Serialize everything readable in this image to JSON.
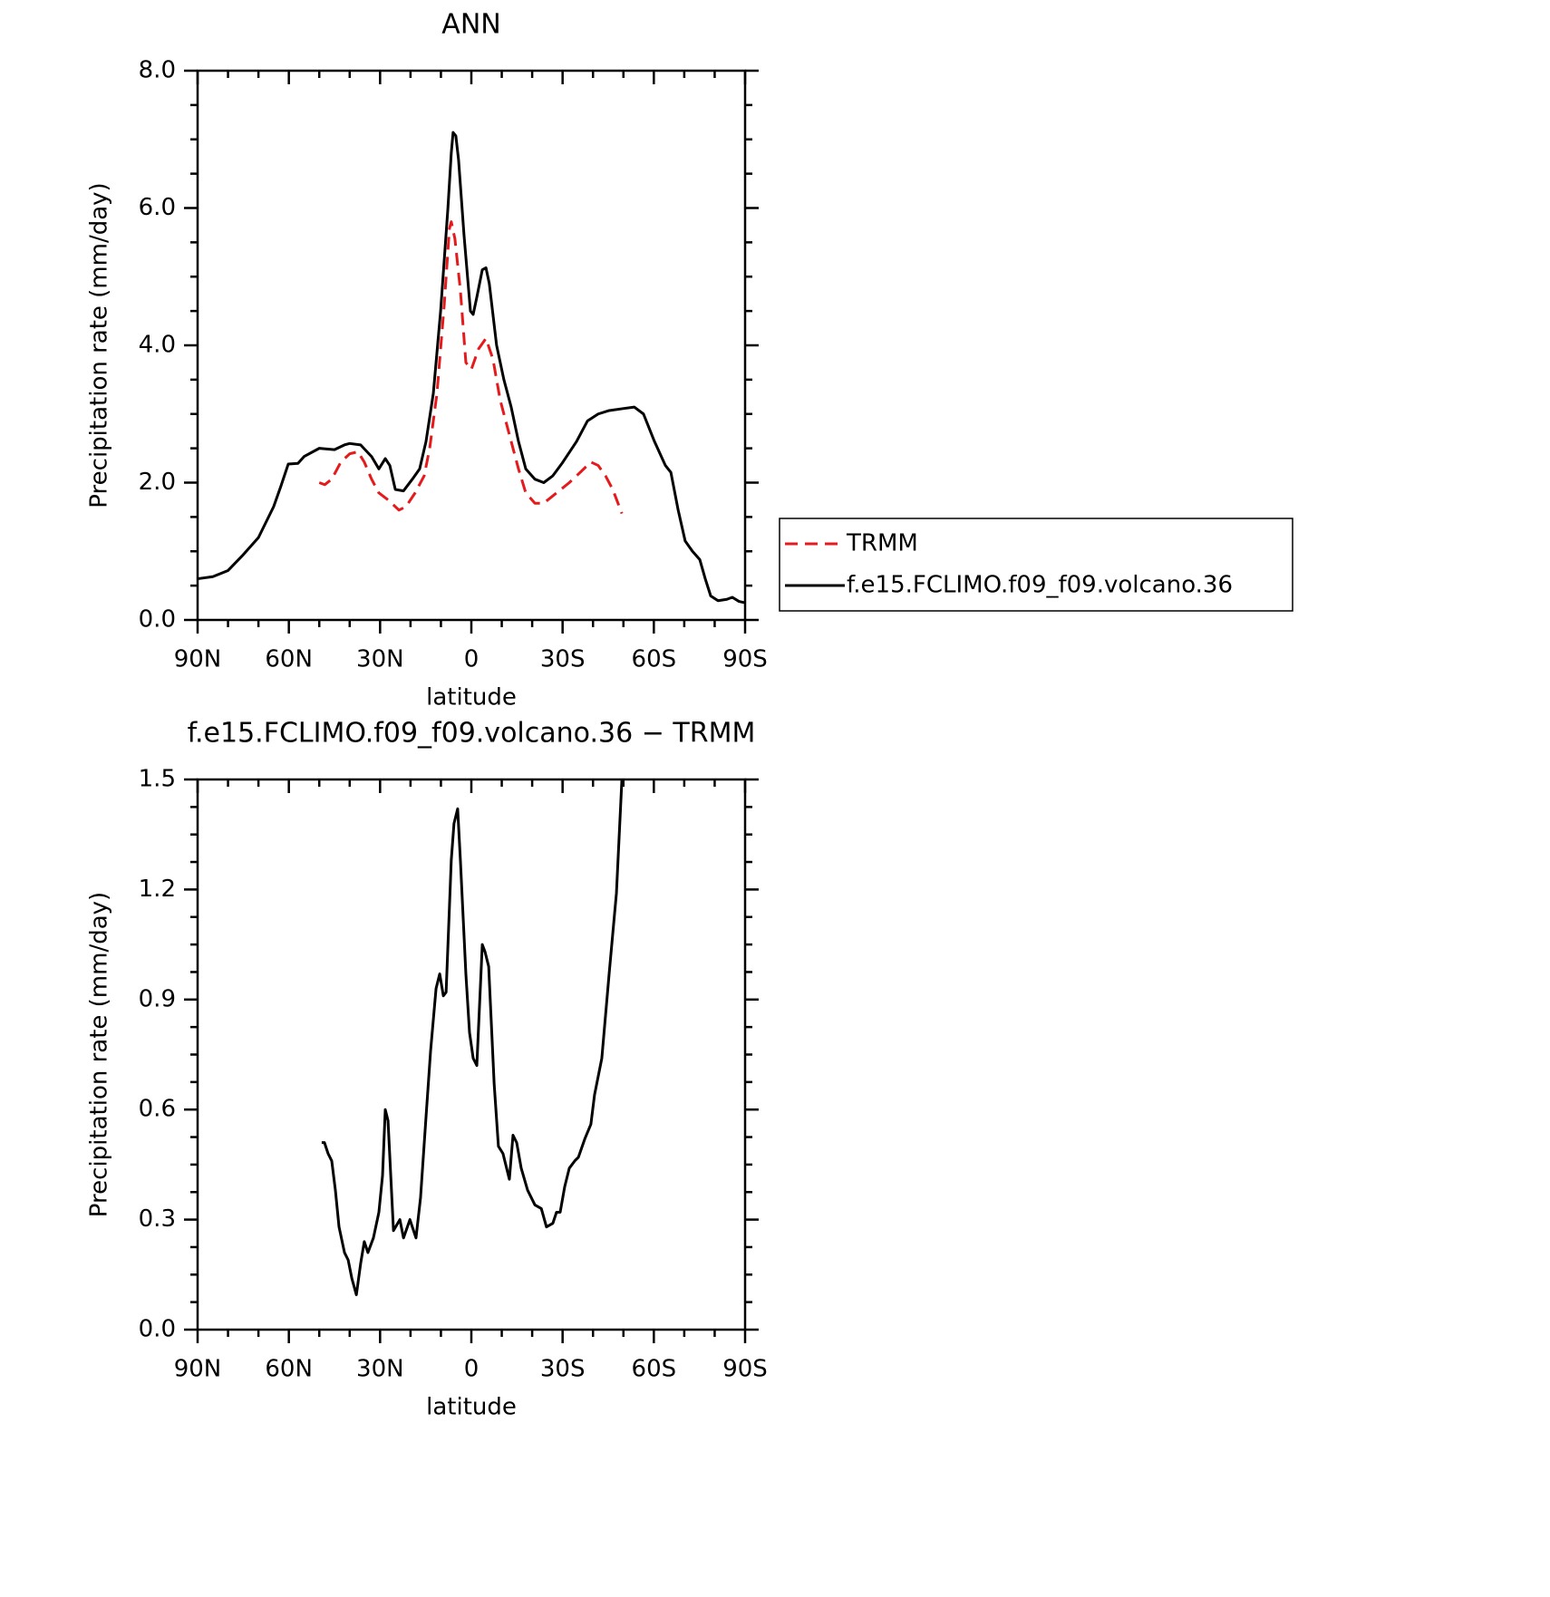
{
  "chart_data": [
    {
      "type": "line",
      "title": "ANN",
      "xlabel": "latitude",
      "ylabel": "Precipitation rate (mm/day)",
      "xlim": [
        90,
        -90
      ],
      "xticks": [
        {
          "value": 90,
          "label": "90N"
        },
        {
          "value": 60,
          "label": "60N"
        },
        {
          "value": 30,
          "label": "30N"
        },
        0,
        {
          "value": -30,
          "label": "30S"
        },
        {
          "value": -60,
          "label": "60S"
        },
        {
          "value": -90,
          "label": "90S"
        }
      ],
      "ylim": [
        0,
        8
      ],
      "yticks": [
        {
          "value": 0,
          "label": "0.0"
        },
        {
          "value": 2,
          "label": "2.0"
        },
        {
          "value": 4,
          "label": "4.0"
        },
        {
          "value": 6,
          "label": "6.0"
        },
        {
          "value": 8,
          "label": "8.0"
        }
      ],
      "series": [
        {
          "name": "TRMM",
          "color": "#e41a1c",
          "dashed": true,
          "x": [
            50,
            48.2,
            45.9,
            42.9,
            40,
            37.3,
            35.2,
            32.8,
            30.4,
            27.4,
            23.8,
            21.5,
            18.5,
            15.5,
            13.7,
            11.3,
            8.9,
            7.2,
            6.6,
            5.4,
            3.6,
            1.8,
            0,
            -2.4,
            -4.8,
            -7.1,
            -9.5,
            -12.5,
            -15.5,
            -17.9,
            -20.9,
            -23.8,
            -28,
            -32.2,
            -35.8,
            -39.3,
            -41.7,
            -44.1,
            -46.5,
            -49.5
          ],
          "values": [
            2.0,
            1.97,
            2.05,
            2.3,
            2.42,
            2.45,
            2.3,
            2.05,
            1.85,
            1.75,
            1.6,
            1.65,
            1.85,
            2.1,
            2.5,
            3.3,
            4.6,
            5.7,
            5.8,
            5.55,
            4.8,
            3.75,
            3.65,
            3.95,
            4.1,
            3.8,
            3.2,
            2.7,
            2.2,
            1.85,
            1.7,
            1.7,
            1.85,
            2.0,
            2.15,
            2.3,
            2.25,
            2.1,
            1.9,
            1.55
          ]
        },
        {
          "name": "f.e15.FCLIMO.f09_f09.volcano.36",
          "color": "#000000",
          "dashed": false,
          "x": [
            90,
            85,
            80,
            75,
            70,
            65,
            62.6,
            60.2,
            57,
            55,
            50,
            45,
            41.7,
            40,
            36.4,
            32.8,
            30.4,
            28.3,
            26.8,
            25,
            22.3,
            19.4,
            17,
            14.9,
            12.5,
            10.1,
            7.7,
            6.6,
            6,
            5.1,
            4.2,
            2.4,
            0.3,
            -0.6,
            -1.8,
            -3.6,
            -4.8,
            -5.9,
            -8.3,
            -10.7,
            -13.1,
            -15.5,
            -17.9,
            -20.9,
            -23.8,
            -26.8,
            -29.8,
            -34.6,
            -38.2,
            -41.7,
            -45.3,
            -50.1,
            -53.6,
            -56.6,
            -60.2,
            -63.8,
            -65.6,
            -68,
            -70.3,
            -72.7,
            -75.1,
            -76.9,
            -78.7,
            -81.1,
            -84,
            -85.8,
            -88,
            -90
          ],
          "values": [
            0.6,
            0.63,
            0.72,
            0.95,
            1.2,
            1.65,
            1.95,
            2.27,
            2.28,
            2.38,
            2.5,
            2.48,
            2.55,
            2.57,
            2.55,
            2.38,
            2.2,
            2.35,
            2.25,
            1.9,
            1.88,
            2.05,
            2.2,
            2.6,
            3.3,
            4.5,
            6.0,
            6.8,
            7.1,
            7.05,
            6.7,
            5.6,
            4.5,
            4.45,
            4.7,
            5.1,
            5.13,
            4.9,
            4.0,
            3.5,
            3.1,
            2.6,
            2.2,
            2.05,
            2.0,
            2.1,
            2.28,
            2.6,
            2.9,
            3.0,
            3.05,
            3.08,
            3.1,
            3.0,
            2.6,
            2.25,
            2.15,
            1.6,
            1.15,
            1.0,
            0.88,
            0.6,
            0.35,
            0.28,
            0.3,
            0.33,
            0.27,
            0.25
          ]
        }
      ]
    },
    {
      "type": "line",
      "title": "f.e15.FCLIMO.f09_f09.volcano.36 − TRMM",
      "xlabel": "latitude",
      "ylabel": "Precipitation rate (mm/day)",
      "xlim": [
        90,
        -90
      ],
      "xticks": [
        {
          "value": 90,
          "label": "90N"
        },
        {
          "value": 60,
          "label": "60N"
        },
        {
          "value": 30,
          "label": "30N"
        },
        0,
        {
          "value": -30,
          "label": "30S"
        },
        {
          "value": -60,
          "label": "60S"
        },
        {
          "value": -90,
          "label": "90S"
        }
      ],
      "ylim": [
        0,
        1.5
      ],
      "yticks": [
        {
          "value": 0,
          "label": "0.0"
        },
        0.3,
        0.6,
        0.9,
        1.2,
        1.5
      ],
      "series": [
        {
          "color": "#000000",
          "dashed": false,
          "x": [
            49.2,
            48.3,
            47.1,
            45.9,
            44.7,
            43.5,
            41.7,
            40.5,
            39.3,
            37.8,
            36.4,
            35.2,
            34,
            32.2,
            30.4,
            29.2,
            28.3,
            27.4,
            25.6,
            23.5,
            22.3,
            20.2,
            18.2,
            16.7,
            14.9,
            13.4,
            11.6,
            10.4,
            9.2,
            8.3,
            6.6,
            5.7,
            4.5,
            3.6,
            1.8,
            0.6,
            -0.6,
            -1.8,
            -3.6,
            -4.5,
            -5.7,
            -7.5,
            -8.9,
            -10.4,
            -12.5,
            -13.7,
            -14.9,
            -16.4,
            -18.5,
            -20.9,
            -23,
            -24.7,
            -26.8,
            -28,
            -29.2,
            -30.7,
            -32.2,
            -34,
            -35.2,
            -37.3,
            -39.3,
            -40.5,
            -42.9,
            -45.3,
            -47.7,
            -49.5
          ],
          "values": [
            0.51,
            0.51,
            0.48,
            0.46,
            0.38,
            0.28,
            0.21,
            0.19,
            0.14,
            0.095,
            0.18,
            0.24,
            0.21,
            0.25,
            0.32,
            0.42,
            0.6,
            0.57,
            0.27,
            0.3,
            0.25,
            0.3,
            0.25,
            0.36,
            0.58,
            0.76,
            0.93,
            0.97,
            0.91,
            0.92,
            1.28,
            1.38,
            1.42,
            1.28,
            0.97,
            0.81,
            0.74,
            0.72,
            1.05,
            1.03,
            0.99,
            0.67,
            0.5,
            0.48,
            0.41,
            0.53,
            0.51,
            0.44,
            0.38,
            0.34,
            0.33,
            0.28,
            0.29,
            0.32,
            0.32,
            0.39,
            0.44,
            0.46,
            0.47,
            0.52,
            0.56,
            0.64,
            0.74,
            0.97,
            1.19,
            1.5
          ]
        }
      ]
    }
  ]
}
